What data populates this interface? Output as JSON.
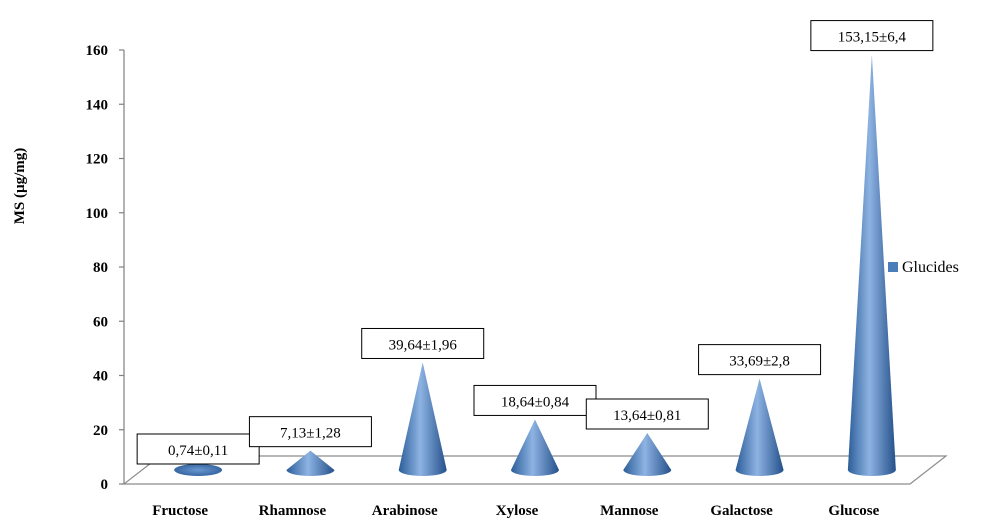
{
  "chart_data": {
    "type": "bar",
    "bar_shape": "cone",
    "categories": [
      "Fructose",
      "Rhamnose",
      "Arabinose",
      "Xylose",
      "Mannose",
      "Galactose",
      "Glucose"
    ],
    "series": [
      {
        "name": "Glucides",
        "values": [
          0.74,
          7.13,
          39.64,
          18.64,
          13.64,
          33.69,
          153.15
        ],
        "labels": [
          "0,74±0,11",
          "7,13±1,28",
          "39,64±1,96",
          "18,64±0,84",
          "13,64±0,81",
          "33,69±2,8",
          "153,15±6,4"
        ]
      }
    ],
    "title": "",
    "xlabel": "",
    "ylabel": "MS (µg/mg)",
    "ylim": [
      0,
      160
    ],
    "yticks": [
      "0",
      "20",
      "40",
      "60",
      "80",
      "100",
      "120",
      "140",
      "160"
    ],
    "grid": false,
    "legend": "right",
    "color": "#4a7ebb"
  }
}
